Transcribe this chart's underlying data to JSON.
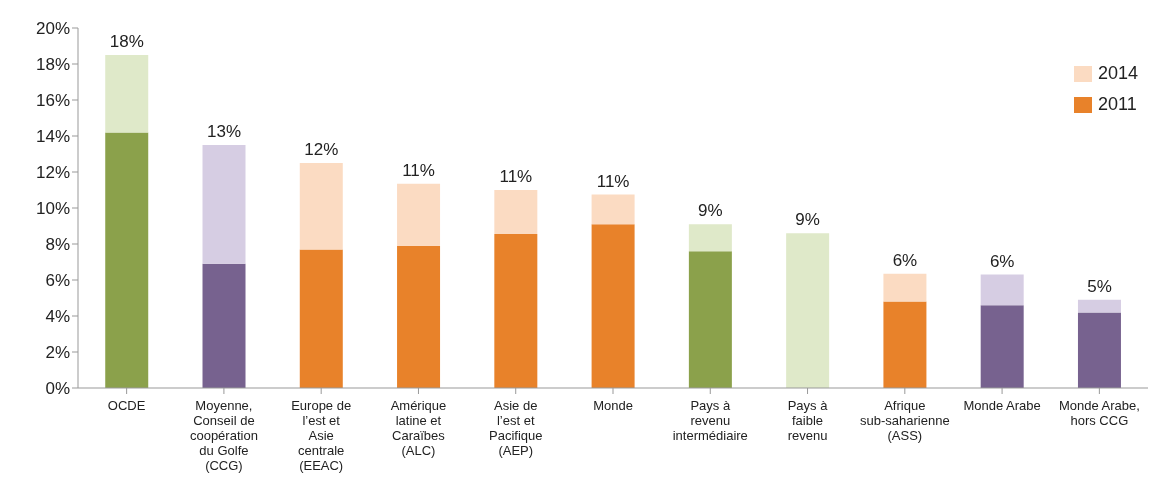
{
  "chart_data": {
    "type": "bar",
    "stacked": true,
    "categories": [
      "OCDE",
      "Moyenne, Conseil de coopération du Golfe (CCG)",
      "Europe de l’est et Asie centrale (EEAC)",
      "Amérique latine et Caraïbes (ALC)",
      "Asie de l’est et Pacifique (AEP)",
      "Monde",
      "Pays à revenu intermédiaire",
      "Pays à faible revenu",
      "Afrique sub-saharienne (ASS)",
      "Monde Arabe",
      "Monde Arabe, hors CCG"
    ],
    "series": [
      {
        "name": "2011",
        "color": "#e8822a",
        "colors": [
          "#8ba14b",
          "#77628f",
          "#e8822a",
          "#e8822a",
          "#e8822a",
          "#e8822a",
          "#8ba14b",
          null,
          "#e8822a",
          "#77628f",
          "#77628f"
        ],
        "values": [
          14.2,
          6.9,
          7.7,
          7.9,
          8.55,
          9.1,
          7.6,
          null,
          4.8,
          4.6,
          4.2
        ]
      },
      {
        "name": "2014",
        "color": "#fbdbc2",
        "colors": [
          "#dfe9c9",
          "#d6cde3",
          "#fbdbc2",
          "#fbdbc2",
          "#fbdbc2",
          "#fbdbc2",
          "#dfe9c9",
          "#dfe9c9",
          "#fbdbc2",
          "#d6cde3",
          "#d6cde3"
        ],
        "values": [
          4.3,
          6.6,
          4.8,
          3.45,
          2.45,
          1.65,
          1.5,
          8.6,
          1.55,
          1.7,
          0.7
        ]
      }
    ],
    "totals": [
      "18%",
      "13%",
      "12%",
      "11%",
      "11%",
      "11%",
      "9%",
      "9%",
      "6%",
      "6%",
      "5%"
    ],
    "ylim": [
      0,
      20
    ],
    "yticks": [
      {
        "value": 0,
        "label": "0%"
      },
      {
        "value": 2,
        "label": "2%"
      },
      {
        "value": 4,
        "label": "4%"
      },
      {
        "value": 6,
        "label": "6%"
      },
      {
        "value": 8,
        "label": "8%"
      },
      {
        "value": 10,
        "label": "10%"
      },
      {
        "value": 12,
        "label": "12%"
      },
      {
        "value": 14,
        "label": "14%"
      },
      {
        "value": 16,
        "label": "16%"
      },
      {
        "value": 18,
        "label": "18%"
      },
      {
        "value": 20,
        "label": "20%"
      }
    ],
    "grid": false,
    "legend": "top right"
  }
}
